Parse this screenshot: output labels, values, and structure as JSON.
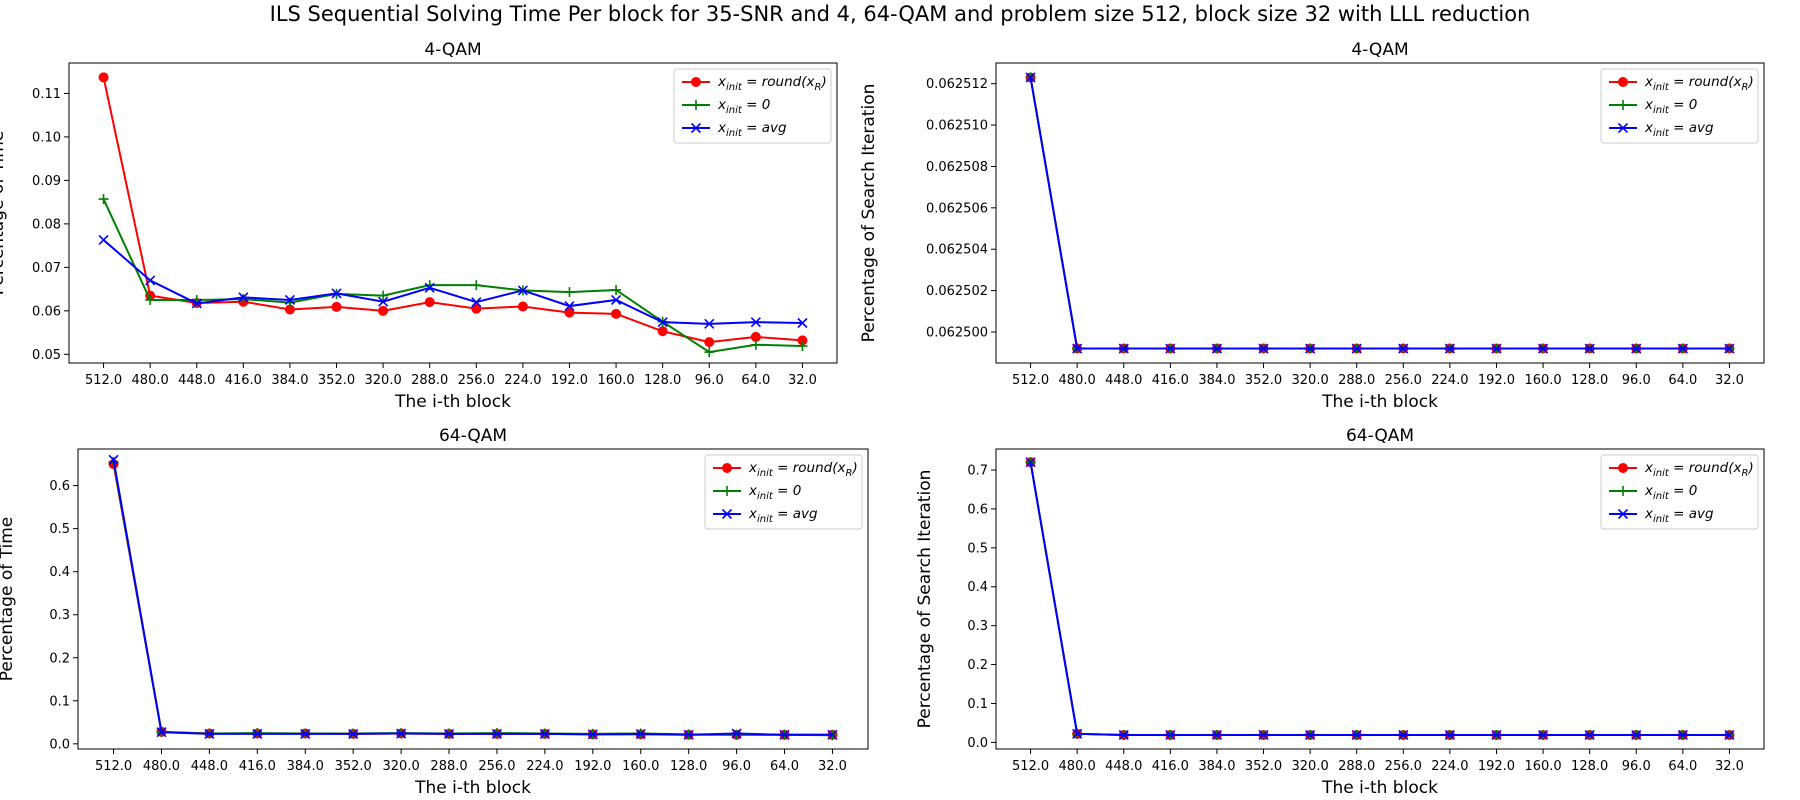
{
  "figure": {
    "suptitle": "ILS Sequential Solving Time Per block for 35-SNR and 4, 64-QAM and problem size 512, block size 32 with LLL reduction"
  },
  "legend_labels": [
    "x_init = round(x_R)",
    "x_init = 0",
    "x_init = avg"
  ],
  "colors": {
    "round": "#ff0000",
    "zero": "#008000",
    "avg": "#0000ff"
  },
  "chart_data": [
    {
      "type": "line",
      "title": "4-QAM",
      "xlabel": "The i-th block",
      "ylabel": "Percentage of Time",
      "categories": [
        "512.0",
        "480.0",
        "448.0",
        "416.0",
        "384.0",
        "352.0",
        "320.0",
        "288.0",
        "256.0",
        "224.0",
        "192.0",
        "160.0",
        "128.0",
        "96.0",
        "64.0",
        "32.0"
      ],
      "ylim": [
        0.048,
        0.117
      ],
      "yticks": [
        0.05,
        0.06,
        0.07,
        0.08,
        0.09,
        0.1,
        0.11
      ],
      "ytick_labels": [
        "0.05",
        "0.06",
        "0.07",
        "0.08",
        "0.09",
        "0.10",
        "0.11"
      ],
      "legend": "top-right",
      "series": [
        {
          "name": "x_init = round(x_R)",
          "color": "#ff0000",
          "marker": "circle",
          "values": [
            0.1137,
            0.0635,
            0.0618,
            0.0621,
            0.0603,
            0.0609,
            0.06,
            0.062,
            0.0605,
            0.061,
            0.0596,
            0.0593,
            0.0553,
            0.0528,
            0.054,
            0.0532
          ]
        },
        {
          "name": "x_init = 0",
          "color": "#008000",
          "marker": "plus",
          "values": [
            0.0857,
            0.0625,
            0.0625,
            0.0627,
            0.0619,
            0.0639,
            0.0635,
            0.0659,
            0.0659,
            0.0647,
            0.0643,
            0.0648,
            0.0575,
            0.0505,
            0.0522,
            0.0519
          ]
        },
        {
          "name": "x_init = avg",
          "color": "#0000ff",
          "marker": "x",
          "values": [
            0.0763,
            0.067,
            0.0617,
            0.0631,
            0.0625,
            0.064,
            0.0621,
            0.0653,
            0.062,
            0.0647,
            0.0611,
            0.0625,
            0.0574,
            0.057,
            0.0574,
            0.0572
          ]
        }
      ]
    },
    {
      "type": "line",
      "title": "4-QAM",
      "xlabel": "The i-th block",
      "ylabel": "Percentage of Search Iteration",
      "categories": [
        "512.0",
        "480.0",
        "448.0",
        "416.0",
        "384.0",
        "352.0",
        "320.0",
        "288.0",
        "256.0",
        "224.0",
        "192.0",
        "160.0",
        "128.0",
        "96.0",
        "64.0",
        "32.0"
      ],
      "ylim": [
        0.0624985,
        0.062513
      ],
      "yticks": [
        0.0625,
        0.062502,
        0.062504,
        0.062506,
        0.062508,
        0.06251,
        0.062512
      ],
      "ytick_labels": [
        "0.062500",
        "0.062502",
        "0.062504",
        "0.062506",
        "0.062508",
        "0.062510",
        "0.062512"
      ],
      "legend": "top-right",
      "series": [
        {
          "name": "x_init = round(x_R)",
          "color": "#ff0000",
          "marker": "circle",
          "values": [
            0.0625123,
            0.0624992,
            0.0624992,
            0.0624992,
            0.0624992,
            0.0624992,
            0.0624992,
            0.0624992,
            0.0624992,
            0.0624992,
            0.0624992,
            0.0624992,
            0.0624992,
            0.0624992,
            0.0624992,
            0.0624992
          ]
        },
        {
          "name": "x_init = 0",
          "color": "#008000",
          "marker": "plus",
          "values": [
            0.0625123,
            0.0624992,
            0.0624992,
            0.0624992,
            0.0624992,
            0.0624992,
            0.0624992,
            0.0624992,
            0.0624992,
            0.0624992,
            0.0624992,
            0.0624992,
            0.0624992,
            0.0624992,
            0.0624992,
            0.0624992
          ]
        },
        {
          "name": "x_init = avg",
          "color": "#0000ff",
          "marker": "x",
          "values": [
            0.0625123,
            0.0624992,
            0.0624992,
            0.0624992,
            0.0624992,
            0.0624992,
            0.0624992,
            0.0624992,
            0.0624992,
            0.0624992,
            0.0624992,
            0.0624992,
            0.0624992,
            0.0624992,
            0.0624992,
            0.0624992
          ]
        }
      ]
    },
    {
      "type": "line",
      "title": "64-QAM",
      "xlabel": "The i-th block",
      "ylabel": "Percentage of Time",
      "categories": [
        "512.0",
        "480.0",
        "448.0",
        "416.0",
        "384.0",
        "352.0",
        "320.0",
        "288.0",
        "256.0",
        "224.0",
        "192.0",
        "160.0",
        "128.0",
        "96.0",
        "64.0",
        "32.0"
      ],
      "ylim": [
        -0.012,
        0.685
      ],
      "yticks": [
        0.0,
        0.1,
        0.2,
        0.3,
        0.4,
        0.5,
        0.6
      ],
      "ytick_labels": [
        "0.0",
        "0.1",
        "0.2",
        "0.3",
        "0.4",
        "0.5",
        "0.6"
      ],
      "legend": "top-right",
      "series": [
        {
          "name": "x_init = round(x_R)",
          "color": "#ff0000",
          "marker": "circle",
          "values": [
            0.65,
            0.028,
            0.024,
            0.024,
            0.024,
            0.023,
            0.024,
            0.023,
            0.023,
            0.023,
            0.022,
            0.022,
            0.021,
            0.021,
            0.021,
            0.021
          ]
        },
        {
          "name": "x_init = 0",
          "color": "#008000",
          "marker": "plus",
          "values": [
            0.655,
            0.027,
            0.024,
            0.025,
            0.024,
            0.024,
            0.025,
            0.024,
            0.025,
            0.024,
            0.023,
            0.024,
            0.022,
            0.021,
            0.021,
            0.02
          ]
        },
        {
          "name": "x_init = avg",
          "color": "#0000ff",
          "marker": "x",
          "values": [
            0.66,
            0.027,
            0.023,
            0.023,
            0.023,
            0.023,
            0.024,
            0.023,
            0.023,
            0.023,
            0.022,
            0.023,
            0.021,
            0.024,
            0.021,
            0.021
          ]
        }
      ]
    },
    {
      "type": "line",
      "title": "64-QAM",
      "xlabel": "The i-th block",
      "ylabel": "Percentage of Search Iteration",
      "categories": [
        "512.0",
        "480.0",
        "448.0",
        "416.0",
        "384.0",
        "352.0",
        "320.0",
        "288.0",
        "256.0",
        "224.0",
        "192.0",
        "160.0",
        "128.0",
        "96.0",
        "64.0",
        "32.0"
      ],
      "ylim": [
        -0.017,
        0.754
      ],
      "yticks": [
        0.0,
        0.1,
        0.2,
        0.3,
        0.4,
        0.5,
        0.6,
        0.7
      ],
      "ytick_labels": [
        "0.0",
        "0.1",
        "0.2",
        "0.3",
        "0.4",
        "0.5",
        "0.6",
        "0.7"
      ],
      "legend": "top-right",
      "series": [
        {
          "name": "x_init = round(x_R)",
          "color": "#ff0000",
          "marker": "circle",
          "values": [
            0.72,
            0.022,
            0.019,
            0.019,
            0.019,
            0.019,
            0.019,
            0.019,
            0.019,
            0.019,
            0.019,
            0.019,
            0.019,
            0.019,
            0.019,
            0.019
          ]
        },
        {
          "name": "x_init = 0",
          "color": "#008000",
          "marker": "plus",
          "values": [
            0.72,
            0.022,
            0.019,
            0.019,
            0.019,
            0.019,
            0.019,
            0.019,
            0.019,
            0.019,
            0.019,
            0.019,
            0.019,
            0.019,
            0.019,
            0.019
          ]
        },
        {
          "name": "x_init = avg",
          "color": "#0000ff",
          "marker": "x",
          "values": [
            0.72,
            0.022,
            0.019,
            0.019,
            0.019,
            0.019,
            0.019,
            0.019,
            0.019,
            0.019,
            0.019,
            0.019,
            0.019,
            0.019,
            0.019,
            0.019
          ]
        }
      ]
    }
  ]
}
